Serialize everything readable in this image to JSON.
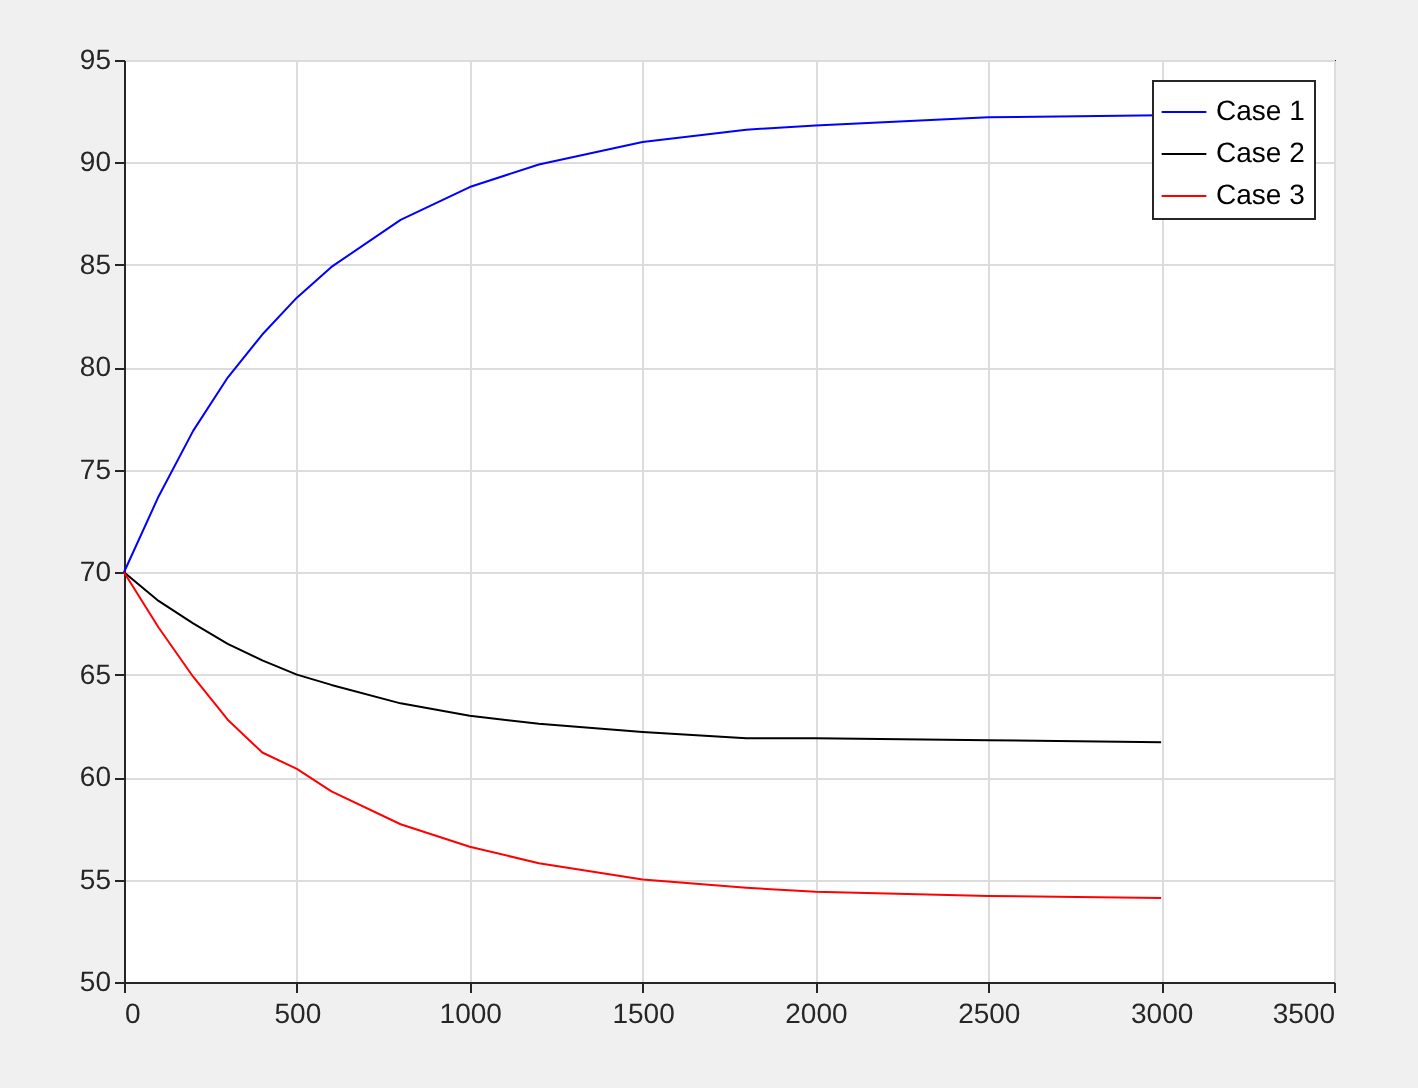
{
  "chart_data": {
    "type": "line",
    "x": [
      0,
      100,
      200,
      300,
      400,
      500,
      600,
      800,
      1000,
      1200,
      1500,
      1800,
      2000,
      2500,
      3000
    ],
    "series": [
      {
        "name": "Case 1",
        "color": "#0000ff",
        "values": [
          70,
          73.7,
          76.9,
          79.5,
          81.6,
          83.4,
          84.9,
          87.2,
          88.8,
          89.9,
          91.0,
          91.6,
          91.8,
          92.2,
          92.3
        ]
      },
      {
        "name": "Case 2",
        "color": "#000000",
        "values": [
          70,
          68.6,
          67.5,
          66.5,
          65.7,
          65.0,
          64.5,
          63.6,
          63.0,
          62.6,
          62.2,
          61.9,
          61.9,
          61.8,
          61.7
        ]
      },
      {
        "name": "Case 3",
        "color": "#ff0000",
        "values": [
          70,
          67.3,
          64.9,
          62.8,
          61.2,
          60.4,
          59.3,
          57.7,
          56.6,
          55.8,
          55.0,
          54.6,
          54.4,
          54.2,
          54.1
        ]
      }
    ],
    "xlim": [
      0,
      3500
    ],
    "xticks": [
      0,
      500,
      1000,
      1500,
      2000,
      2500,
      3000,
      3500
    ],
    "ylim": [
      50,
      95
    ],
    "yticks": [
      50,
      55,
      60,
      65,
      70,
      75,
      80,
      85,
      90,
      95
    ],
    "grid": true,
    "legend": "top right",
    "marker": "none",
    "line_style": "solid"
  }
}
